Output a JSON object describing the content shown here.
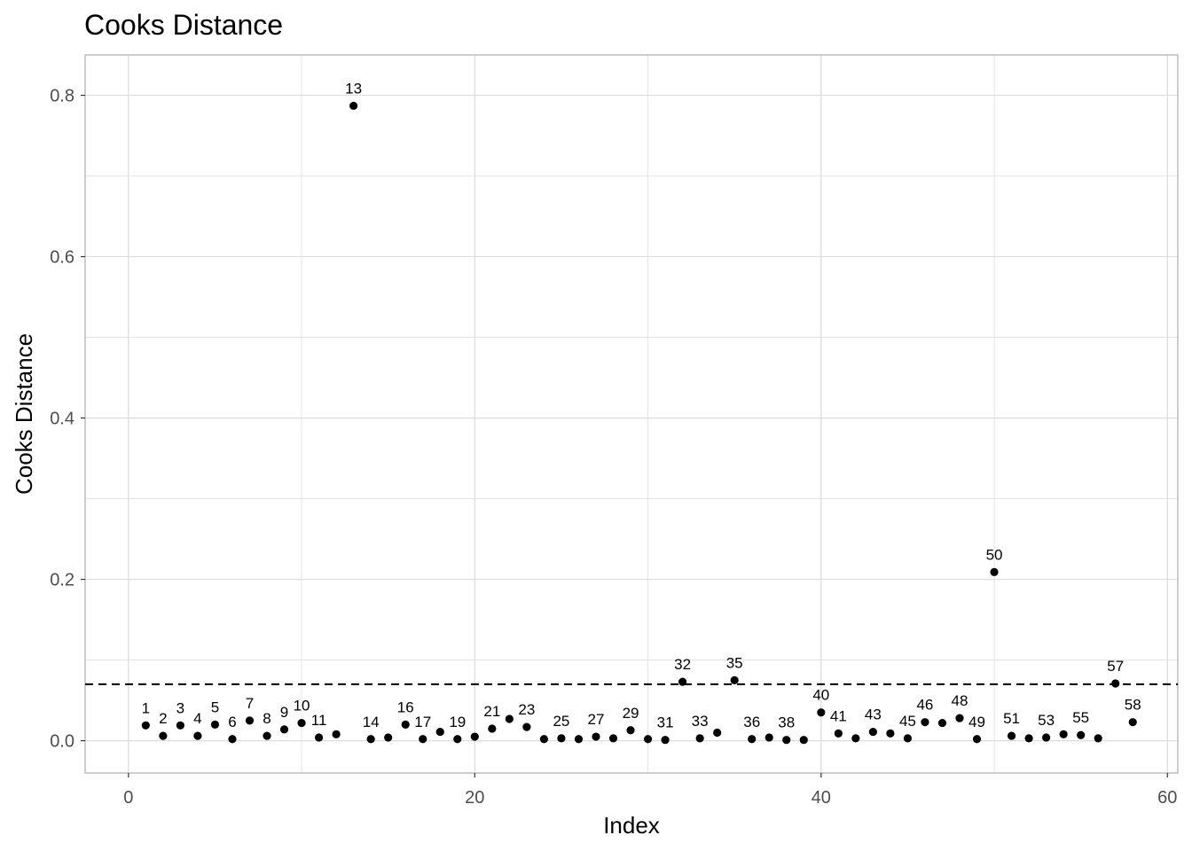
{
  "chart_data": {
    "type": "scatter",
    "title": "Cooks Distance",
    "xlabel": "Index",
    "ylabel": "Cooks Distance",
    "xlim": [
      -2.5,
      60.6
    ],
    "ylim": [
      -0.04,
      0.85
    ],
    "x_ticks": [
      0,
      20,
      40,
      60
    ],
    "y_ticks": [
      0.0,
      0.2,
      0.4,
      0.6,
      0.8
    ],
    "x_tick_labels": [
      "0",
      "20",
      "40",
      "60"
    ],
    "y_tick_labels": [
      "0.0",
      "0.2",
      "0.4",
      "0.6",
      "0.8"
    ],
    "grid": true,
    "threshold": 0.07,
    "points": [
      {
        "x": 1,
        "y": 0.019,
        "label": "1"
      },
      {
        "x": 2,
        "y": 0.006,
        "label": "2"
      },
      {
        "x": 3,
        "y": 0.019,
        "label": "3"
      },
      {
        "x": 4,
        "y": 0.006,
        "label": "4"
      },
      {
        "x": 5,
        "y": 0.02,
        "label": "5"
      },
      {
        "x": 6,
        "y": 0.002,
        "label": "6"
      },
      {
        "x": 7,
        "y": 0.025,
        "label": "7"
      },
      {
        "x": 8,
        "y": 0.006,
        "label": "8"
      },
      {
        "x": 9,
        "y": 0.014,
        "label": "9"
      },
      {
        "x": 10,
        "y": 0.022,
        "label": "10"
      },
      {
        "x": 11,
        "y": 0.004,
        "label": "11"
      },
      {
        "x": 12,
        "y": 0.008,
        "label": ""
      },
      {
        "x": 13,
        "y": 0.787,
        "label": "13"
      },
      {
        "x": 14,
        "y": 0.002,
        "label": "14"
      },
      {
        "x": 15,
        "y": 0.004,
        "label": ""
      },
      {
        "x": 16,
        "y": 0.02,
        "label": "16"
      },
      {
        "x": 17,
        "y": 0.002,
        "label": "17"
      },
      {
        "x": 18,
        "y": 0.011,
        "label": ""
      },
      {
        "x": 19,
        "y": 0.002,
        "label": "19"
      },
      {
        "x": 20,
        "y": 0.005,
        "label": ""
      },
      {
        "x": 21,
        "y": 0.015,
        "label": "21"
      },
      {
        "x": 22,
        "y": 0.027,
        "label": ""
      },
      {
        "x": 23,
        "y": 0.017,
        "label": "23"
      },
      {
        "x": 24,
        "y": 0.002,
        "label": ""
      },
      {
        "x": 25,
        "y": 0.003,
        "label": "25"
      },
      {
        "x": 26,
        "y": 0.002,
        "label": ""
      },
      {
        "x": 27,
        "y": 0.005,
        "label": "27"
      },
      {
        "x": 28,
        "y": 0.003,
        "label": ""
      },
      {
        "x": 29,
        "y": 0.013,
        "label": "29"
      },
      {
        "x": 30,
        "y": 0.002,
        "label": ""
      },
      {
        "x": 31,
        "y": 0.001,
        "label": "31"
      },
      {
        "x": 32,
        "y": 0.073,
        "label": "32"
      },
      {
        "x": 33,
        "y": 0.003,
        "label": "33"
      },
      {
        "x": 34,
        "y": 0.01,
        "label": ""
      },
      {
        "x": 35,
        "y": 0.075,
        "label": "35"
      },
      {
        "x": 36,
        "y": 0.002,
        "label": "36"
      },
      {
        "x": 37,
        "y": 0.004,
        "label": ""
      },
      {
        "x": 38,
        "y": 0.001,
        "label": "38"
      },
      {
        "x": 39,
        "y": 0.001,
        "label": ""
      },
      {
        "x": 40,
        "y": 0.035,
        "label": "40"
      },
      {
        "x": 41,
        "y": 0.009,
        "label": "41"
      },
      {
        "x": 42,
        "y": 0.003,
        "label": ""
      },
      {
        "x": 43,
        "y": 0.011,
        "label": "43"
      },
      {
        "x": 44,
        "y": 0.009,
        "label": ""
      },
      {
        "x": 45,
        "y": 0.003,
        "label": "45"
      },
      {
        "x": 46,
        "y": 0.023,
        "label": "46"
      },
      {
        "x": 47,
        "y": 0.022,
        "label": ""
      },
      {
        "x": 48,
        "y": 0.028,
        "label": "48"
      },
      {
        "x": 49,
        "y": 0.002,
        "label": "49"
      },
      {
        "x": 50,
        "y": 0.209,
        "label": "50"
      },
      {
        "x": 51,
        "y": 0.006,
        "label": "51"
      },
      {
        "x": 52,
        "y": 0.003,
        "label": ""
      },
      {
        "x": 53,
        "y": 0.004,
        "label": "53"
      },
      {
        "x": 54,
        "y": 0.008,
        "label": ""
      },
      {
        "x": 55,
        "y": 0.007,
        "label": "55"
      },
      {
        "x": 56,
        "y": 0.003,
        "label": ""
      },
      {
        "x": 57,
        "y": 0.071,
        "label": "57"
      },
      {
        "x": 58,
        "y": 0.023,
        "label": "58"
      }
    ],
    "colors": {
      "point": "#000000",
      "grid": "#dedede",
      "panel_border": "#b3b3b3",
      "threshold": "#000000"
    }
  }
}
